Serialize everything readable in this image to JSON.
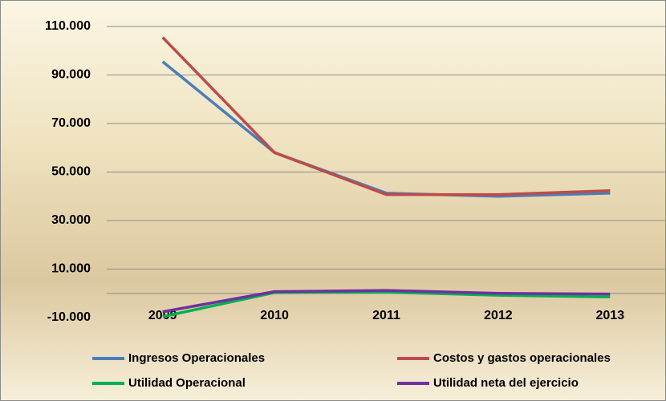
{
  "chart_data": {
    "type": "line",
    "categories": [
      "2009",
      "2010",
      "2011",
      "2012",
      "2013"
    ],
    "series": [
      {
        "name": "Ingresos Operacionales",
        "color": "#4a7ebb",
        "values": [
          95500,
          58000,
          41300,
          40000,
          41300
        ]
      },
      {
        "name": "Costos y gastos operacionales",
        "color": "#be4b48",
        "values": [
          105500,
          58000,
          40700,
          40700,
          42300
        ]
      },
      {
        "name": "Utilidad Operacional",
        "color": "#00b050",
        "values": [
          -9600,
          300,
          500,
          -800,
          -1500
        ]
      },
      {
        "name": "Utilidad neta del ejercicio",
        "color": "#7030a0",
        "values": [
          -7600,
          700,
          1200,
          0,
          -300
        ]
      }
    ],
    "ylim": [
      -10000,
      110000
    ],
    "yticks": [
      {
        "value": -10000,
        "label": "-10.000"
      },
      {
        "value": 10000,
        "label": "10.000"
      },
      {
        "value": 30000,
        "label": "30.000"
      },
      {
        "value": 50000,
        "label": "50.000"
      },
      {
        "value": 70000,
        "label": "70.000"
      },
      {
        "value": 90000,
        "label": "90.000"
      },
      {
        "value": 110000,
        "label": "110.000"
      }
    ],
    "grid": true
  }
}
